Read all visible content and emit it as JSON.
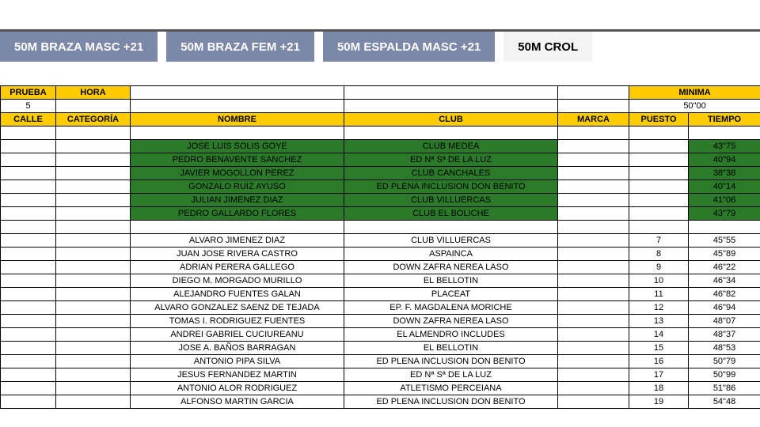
{
  "tabs": [
    {
      "label": "50M BRAZA MASC +21",
      "active": false
    },
    {
      "label": "50M BRAZA FEM +21",
      "active": false
    },
    {
      "label": "50M ESPALDA MASC +21",
      "active": false
    },
    {
      "label": "50M CROL",
      "active": true
    }
  ],
  "colors": {
    "tab_inactive_bg": "#7b88a8",
    "tab_inactive_fg": "#ffffff",
    "tab_active_bg": "#f4f4f4",
    "tab_active_fg": "#000000",
    "header_yellow": "#ffcc00",
    "row_green": "#2a7a2a",
    "border": "#000000"
  },
  "header1": {
    "prueba_label": "PRUEBA",
    "hora_label": "HORA",
    "minima_label": "MINIMA"
  },
  "header2": {
    "prueba_value": "5",
    "minima_value": "50\"00"
  },
  "header3": {
    "calle": "CALLE",
    "categoria": "CATEGORÍA",
    "nombre": "NOMBRE",
    "club": "CLUB",
    "marca": "MARCA",
    "puesto": "PUESTO",
    "tiempo": "TIEMPO"
  },
  "green_rows": [
    {
      "nombre": "JOSE LUIS SOLIS GOYE",
      "club": "CLUB MEDEA",
      "tiempo": "43\"75"
    },
    {
      "nombre": "PEDRO BENAVENTE SANCHEZ",
      "club": "ED Nª Sª DE LA LUZ",
      "tiempo": "40\"94"
    },
    {
      "nombre": "JAVIER MOGOLLON PEREZ",
      "club": "CLUB CANCHALES",
      "tiempo": "38\"38"
    },
    {
      "nombre": "GONZALO RUIZ AYUSO",
      "club": "ED PLENA INCLUSION DON BENITO",
      "tiempo": "40\"14"
    },
    {
      "nombre": "JULIAN JIMENEZ DIAZ",
      "club": "CLUB VILLUERCAS",
      "tiempo": "41\"06"
    },
    {
      "nombre": "PEDRO GALLARDO FLORES",
      "club": "CLUB EL BOLICHE",
      "tiempo": "43\"79"
    }
  ],
  "white_rows": [
    {
      "nombre": "ALVARO JIMENEZ DIAZ",
      "club": "CLUB VILLUERCAS",
      "puesto": "7",
      "tiempo": "45\"55"
    },
    {
      "nombre": "JUAN JOSE RIVERA CASTRO",
      "club": "ASPAINCA",
      "puesto": "8",
      "tiempo": "45\"89"
    },
    {
      "nombre": "ADRIAN PERERA GALLEGO",
      "club": "DOWN ZAFRA NEREA LASO",
      "puesto": "9",
      "tiempo": "46\"22"
    },
    {
      "nombre": "DIEGO M. MORGADO MURILLO",
      "club": "EL BELLOTIN",
      "puesto": "10",
      "tiempo": "46\"34"
    },
    {
      "nombre": "ALEJANDRO FUENTES GALAN",
      "club": "PLACEAT",
      "puesto": "11",
      "tiempo": "46\"82"
    },
    {
      "nombre": "ALVARO GONZALEZ SAENZ DE TEJADA",
      "club": "EP. F. MAGDALENA MORICHE",
      "puesto": "12",
      "tiempo": "46\"94"
    },
    {
      "nombre": "TOMAS I. RODRIGUEZ FUENTES",
      "club": "DOWN ZAFRA NEREA LASO",
      "puesto": "13",
      "tiempo": "48\"07"
    },
    {
      "nombre": "ANDREI GABRIEL CUCIUREANU",
      "club": "EL ALMENDRO INCLUDES",
      "puesto": "14",
      "tiempo": "48\"37"
    },
    {
      "nombre": "JOSE A. BAÑOS BARRAGAN",
      "club": "EL BELLOTIN",
      "puesto": "15",
      "tiempo": "48\"53"
    },
    {
      "nombre": "ANTONIO PIPA SILVA",
      "club": "ED PLENA INCLUSION DON BENITO",
      "puesto": "16",
      "tiempo": "50\"79"
    },
    {
      "nombre": "JESUS FERNANDEZ MARTIN",
      "club": "ED Nª Sª DE LA LUZ",
      "puesto": "17",
      "tiempo": "50\"99"
    },
    {
      "nombre": "ANTONIO ALOR RODRIGUEZ",
      "club": "ATLETISMO PERCEIANA",
      "puesto": "18",
      "tiempo": "51\"86"
    },
    {
      "nombre": "ALFONSO MARTIN GARCIA",
      "club": "ED PLENA INCLUSION DON BENITO",
      "puesto": "19",
      "tiempo": "54\"48"
    }
  ]
}
